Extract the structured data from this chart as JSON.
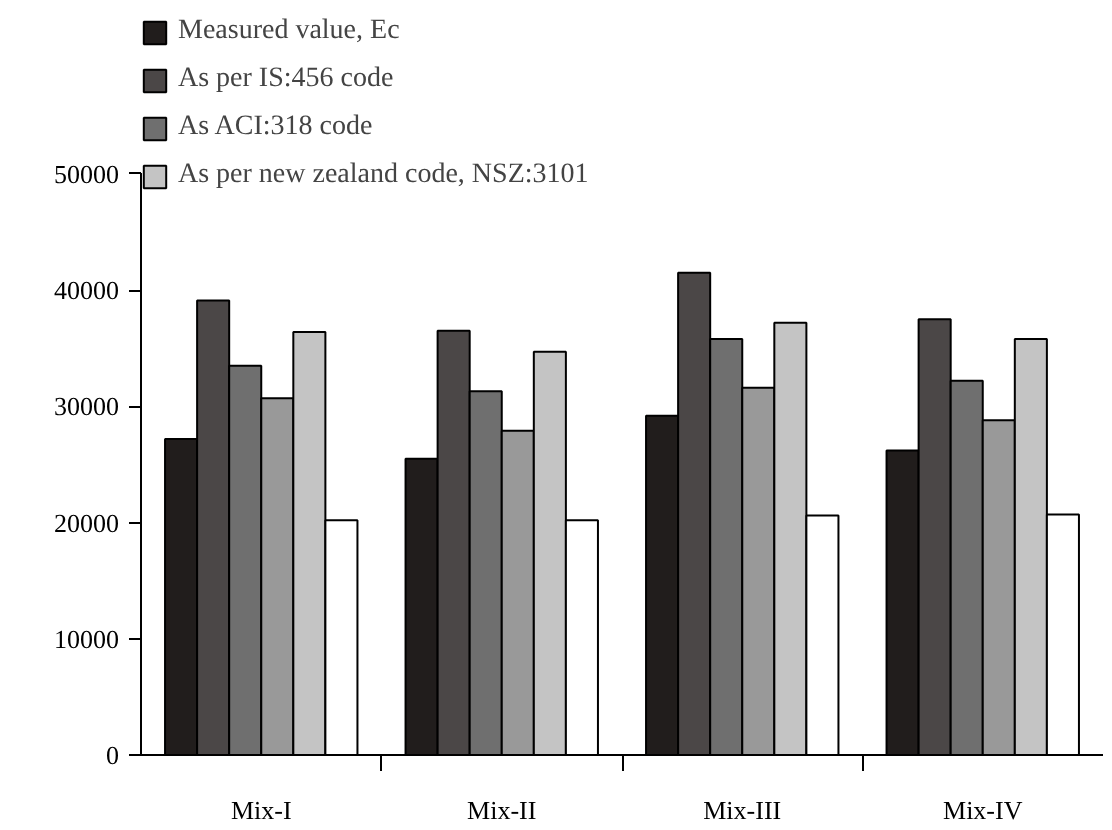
{
  "chart_data": {
    "type": "bar",
    "categories": [
      "Mix-I",
      "Mix-II",
      "Mix-III",
      "Mix-IV"
    ],
    "series": [
      {
        "name": "Measured value, Ec",
        "color": "#211d1c",
        "values": [
          27200,
          25500,
          29200,
          26200
        ]
      },
      {
        "name": "As per IS:456 code",
        "color": "#4b4747",
        "values": [
          39100,
          36500,
          41500,
          37500
        ]
      },
      {
        "name": "As ACI:318 code",
        "color": "#6f6f6f",
        "values": [
          33500,
          31300,
          35800,
          32200
        ]
      },
      {
        "color": "#999999",
        "values": [
          30700,
          27900,
          31600,
          28800
        ]
      },
      {
        "name": "As per new zealand code, NSZ:3101",
        "color": "#c4c4c4",
        "values": [
          36400,
          34700,
          37200,
          35800
        ]
      },
      {
        "color": "#ffffff",
        "values": [
          20200,
          20200,
          20600,
          20700
        ]
      }
    ],
    "ylim": [
      0,
      50000
    ],
    "yticks": [
      0,
      10000,
      20000,
      30000,
      40000,
      50000
    ],
    "grid": false,
    "legend": "top left"
  }
}
